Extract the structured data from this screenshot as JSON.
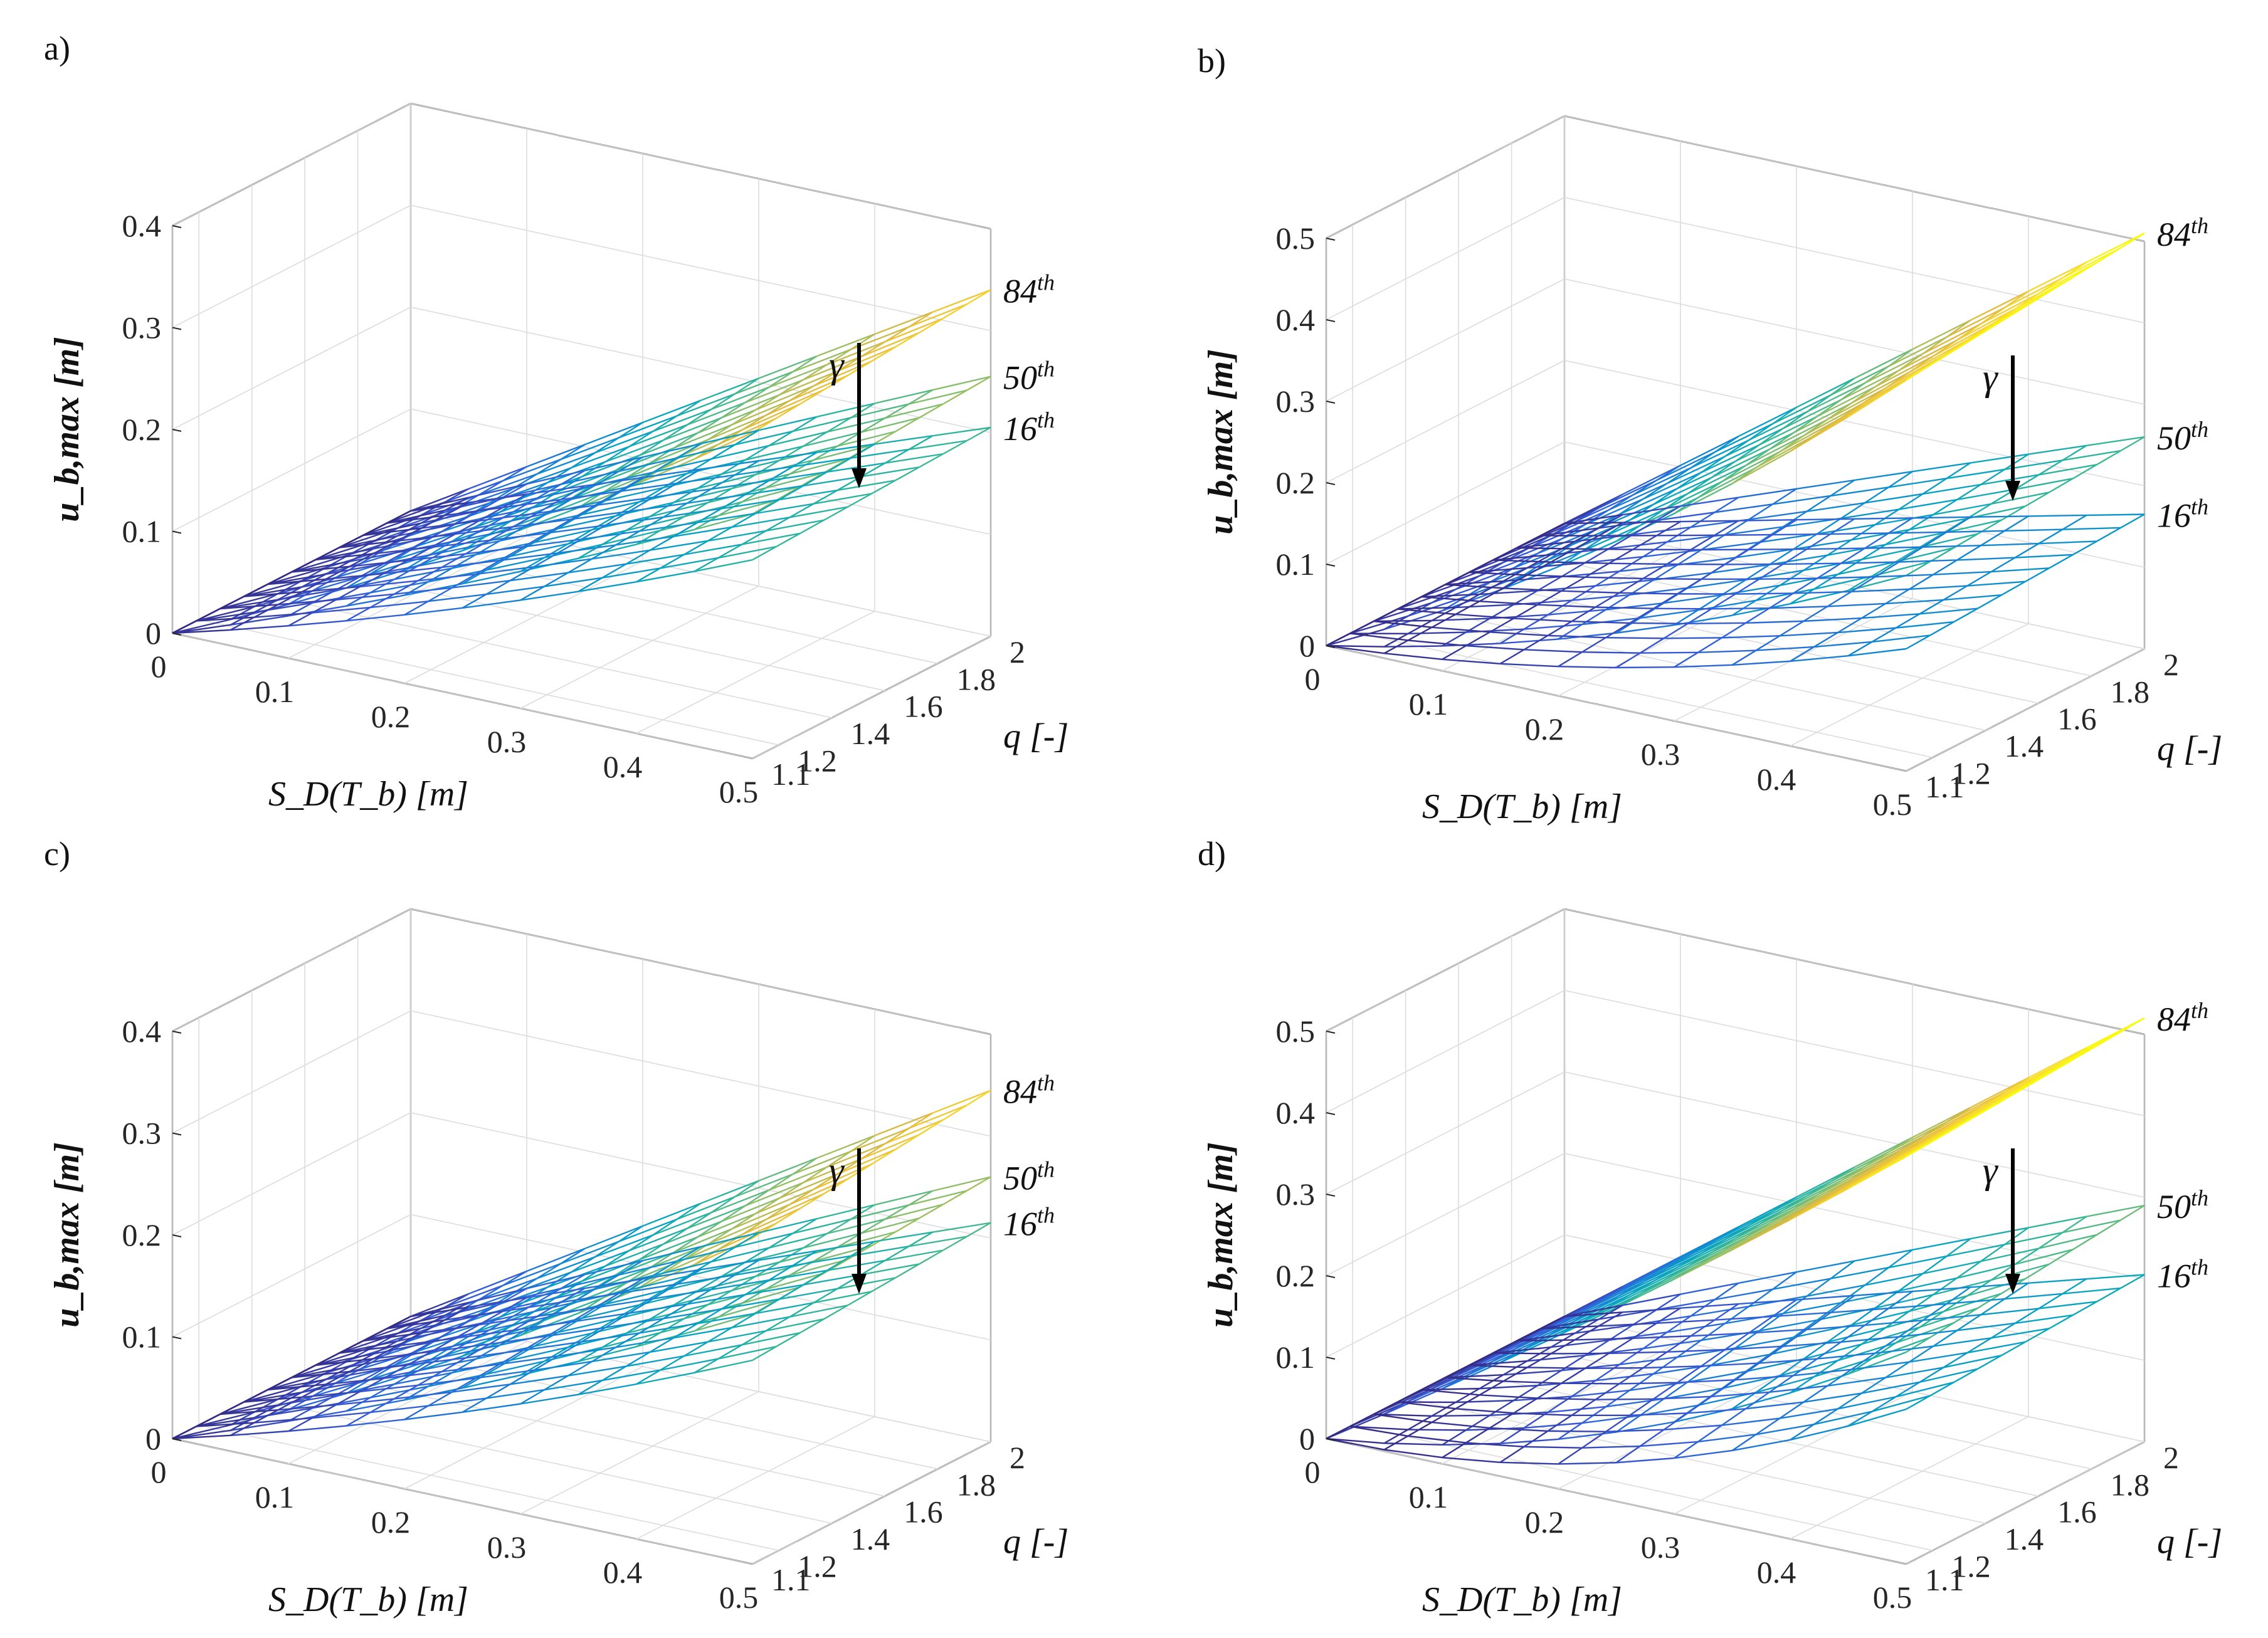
{
  "chart_data": [
    {
      "panel": "a)",
      "type": "surface",
      "xlabel": "S_D(T_b) [m]",
      "ylabel": "q [-]",
      "zlabel": "u_b,max [m]",
      "xlim": [
        0,
        0.5
      ],
      "ylim": [
        1.1,
        2.0
      ],
      "zlim": [
        0,
        0.4
      ],
      "xticks": [
        "0",
        "0.1",
        "0.2",
        "0.3",
        "0.4",
        "0.5"
      ],
      "yticks": [
        "1.1",
        "1.2",
        "1.4",
        "1.6",
        "1.8",
        "2"
      ],
      "zticks": [
        "0",
        "0.1",
        "0.2",
        "0.3",
        "0.4"
      ],
      "series": [
        {
          "name": "84th",
          "value_at_max": [
            0.34,
            0.32
          ],
          "slope_low_q": 0.25,
          "label": "84",
          "sup": "th"
        },
        {
          "name": "50th",
          "value_at_max": [
            0.255,
            0.24
          ],
          "slope_low_q": 0.2,
          "label": "50",
          "sup": "th"
        },
        {
          "name": "16th",
          "value_at_max": [
            0.205,
            0.195
          ],
          "slope_low_q": 0.15,
          "label": "16",
          "sup": "th"
        }
      ],
      "annotation": "γ"
    },
    {
      "panel": "b)",
      "type": "surface",
      "xlabel": "S_D(T_b) [m]",
      "ylabel": "q [-]",
      "zlabel": "u_b,max [m]",
      "xlim": [
        0,
        0.5
      ],
      "ylim": [
        1.1,
        2.0
      ],
      "zlim": [
        0,
        0.5
      ],
      "xticks": [
        "0",
        "0.1",
        "0.2",
        "0.3",
        "0.4",
        "0.5"
      ],
      "yticks": [
        "1.1",
        "1.2",
        "1.4",
        "1.6",
        "1.8",
        "2"
      ],
      "zticks": [
        "0",
        "0.1",
        "0.2",
        "0.3",
        "0.4",
        "0.5"
      ],
      "series": [
        {
          "name": "84th",
          "value_at_max": [
            0.51,
            0.48
          ],
          "slope_low_q": 0.34,
          "label": "84",
          "sup": "th"
        },
        {
          "name": "50th",
          "value_at_max": [
            0.26,
            0.24
          ],
          "slope_low_q": 0.13,
          "label": "50",
          "sup": "th"
        },
        {
          "name": "16th",
          "value_at_max": [
            0.165,
            0.15
          ],
          "slope_low_q": 0.05,
          "label": "16",
          "sup": "th"
        }
      ],
      "annotation": "γ"
    },
    {
      "panel": "c)",
      "type": "surface",
      "xlabel": "S_D(T_b) [m]",
      "ylabel": "q [-]",
      "zlabel": "u_b,max [m]",
      "xlim": [
        0,
        0.5
      ],
      "ylim": [
        1.1,
        2.0
      ],
      "zlim": [
        0,
        0.4
      ],
      "xticks": [
        "0",
        "0.1",
        "0.2",
        "0.3",
        "0.4",
        "0.5"
      ],
      "yticks": [
        "1.1",
        "1.2",
        "1.4",
        "1.6",
        "1.8",
        "2"
      ],
      "zticks": [
        "0",
        "0.1",
        "0.2",
        "0.3",
        "0.4"
      ],
      "series": [
        {
          "name": "84th",
          "value_at_max": [
            0.345,
            0.32
          ],
          "slope_low_q": 0.25,
          "label": "84",
          "sup": "th"
        },
        {
          "name": "50th",
          "value_at_max": [
            0.26,
            0.245
          ],
          "slope_low_q": 0.2,
          "label": "50",
          "sup": "th"
        },
        {
          "name": "16th",
          "value_at_max": [
            0.215,
            0.2
          ],
          "slope_low_q": 0.15,
          "label": "16",
          "sup": "th"
        }
      ],
      "annotation": "γ"
    },
    {
      "panel": "d)",
      "type": "surface",
      "xlabel": "S_D(T_b) [m]",
      "ylabel": "q [-]",
      "zlabel": "u_b,max [m]",
      "xlim": [
        0,
        0.5
      ],
      "ylim": [
        1.1,
        2.0
      ],
      "zlim": [
        0,
        0.5
      ],
      "xticks": [
        "0",
        "0.1",
        "0.2",
        "0.3",
        "0.4",
        "0.5"
      ],
      "yticks": [
        "1.1",
        "1.2",
        "1.4",
        "1.6",
        "1.8",
        "2"
      ],
      "zticks": [
        "0",
        "0.1",
        "0.2",
        "0.3",
        "0.4",
        "0.5"
      ],
      "series": [
        {
          "name": "84th",
          "value_at_max": [
            0.52,
            0.5
          ],
          "slope_low_q": 0.45,
          "label": "84",
          "sup": "th"
        },
        {
          "name": "50th",
          "value_at_max": [
            0.29,
            0.26
          ],
          "slope_low_q": 0.08,
          "label": "50",
          "sup": "th"
        },
        {
          "name": "16th",
          "value_at_max": [
            0.205,
            0.19
          ],
          "slope_low_q": 0.0,
          "label": "16",
          "sup": "th"
        }
      ],
      "annotation": "γ"
    }
  ]
}
